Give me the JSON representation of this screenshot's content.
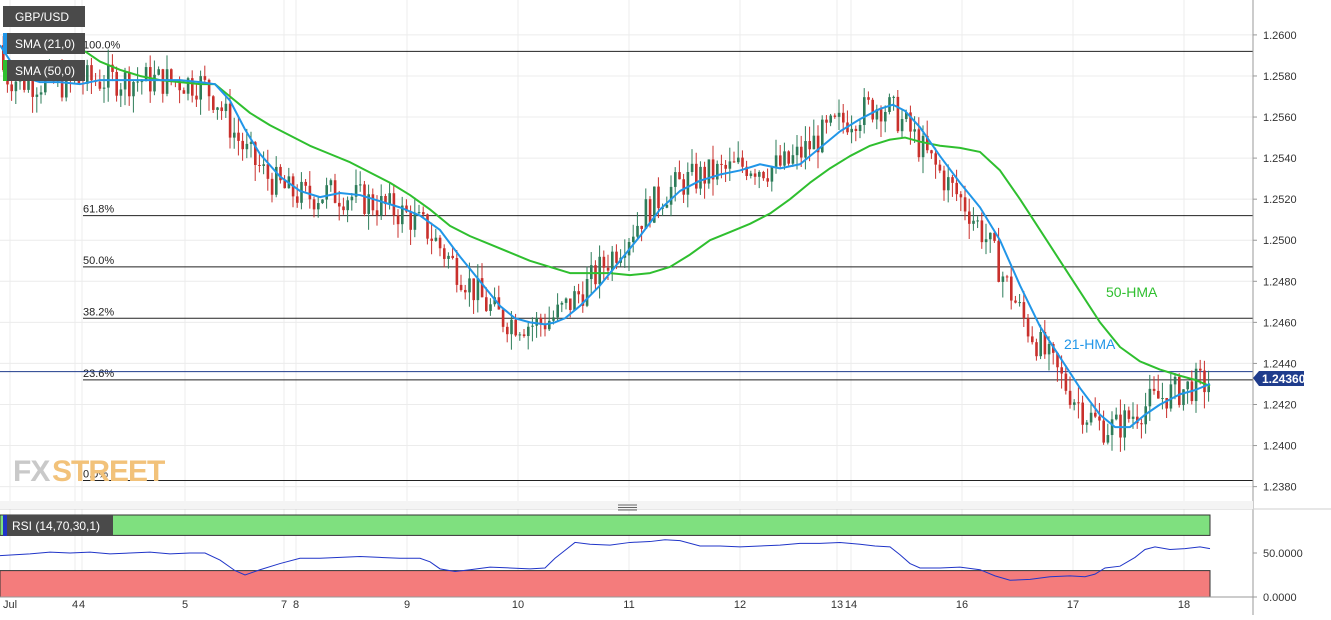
{
  "symbol": "GBP/USD",
  "legend": {
    "sma21": "SMA (21,0)",
    "sma50": "SMA (50,0)",
    "rsi": "RSI (14,70,30,1)"
  },
  "watermark": {
    "fx": "FX",
    "street": "STREET"
  },
  "colors": {
    "bull": "#2e7d5a",
    "bear": "#c9302c",
    "hma21": "#2196e8",
    "hma50": "#2fbf2f",
    "rsi_line": "#2035c8",
    "rsi_overbought": "#7fe07f",
    "rsi_oversold": "#f47c7c",
    "price_label": "#1f3c8c"
  },
  "chart_data": [
    {
      "type": "candlestick",
      "title": "GBP/USD",
      "y_ticks": [
        "1.2380",
        "1.2400",
        "1.2420",
        "1.2440",
        "1.2460",
        "1.2480",
        "1.2500",
        "1.2520",
        "1.2540",
        "1.2560",
        "1.2580",
        "1.2600"
      ],
      "ylim": [
        1.2373,
        1.2617
      ],
      "current_price": "1.24360",
      "x_ticks": [
        "Jul",
        "4",
        "4",
        "5",
        "7",
        "8",
        "9",
        "10",
        "11",
        "12",
        "13",
        "14",
        "16",
        "17",
        "18"
      ],
      "fibonacci": [
        {
          "label": "100.0%",
          "value": 1.2592
        },
        {
          "label": "61.8%",
          "value": 1.2512
        },
        {
          "label": "50.0%",
          "value": 1.2487
        },
        {
          "label": "38.2%",
          "value": 1.2462
        },
        {
          "label": "23.6%",
          "value": 1.2432
        },
        {
          "label": "0.0%",
          "value": 1.2383
        }
      ],
      "annotations": [
        "50-HMA",
        "21-HMA"
      ],
      "series": [
        {
          "name": "21-HMA",
          "points": [
            [
              0,
              1.2595
            ],
            [
              20,
              1.258
            ],
            [
              40,
              1.2577
            ],
            [
              60,
              1.2577
            ],
            [
              80,
              1.2576
            ],
            [
              100,
              1.2578
            ],
            [
              120,
              1.2578
            ],
            [
              140,
              1.2578
            ],
            [
              160,
              1.2578
            ],
            [
              180,
              1.2578
            ],
            [
              200,
              1.2577
            ],
            [
              215,
              1.2576
            ],
            [
              230,
              1.2568
            ],
            [
              245,
              1.2554
            ],
            [
              260,
              1.2542
            ],
            [
              280,
              1.2531
            ],
            [
              300,
              1.2524
            ],
            [
              320,
              1.2521
            ],
            [
              340,
              1.2523
            ],
            [
              360,
              1.2522
            ],
            [
              380,
              1.2519
            ],
            [
              400,
              1.2516
            ],
            [
              420,
              1.2512
            ],
            [
              440,
              1.2505
            ],
            [
              460,
              1.2492
            ],
            [
              480,
              1.248
            ],
            [
              500,
              1.2468
            ],
            [
              515,
              1.2462
            ],
            [
              530,
              1.246
            ],
            [
              545,
              1.2459
            ],
            [
              555,
              1.246
            ],
            [
              565,
              1.2462
            ],
            [
              580,
              1.2468
            ],
            [
              600,
              1.2478
            ],
            [
              620,
              1.249
            ],
            [
              640,
              1.2502
            ],
            [
              660,
              1.2515
            ],
            [
              680,
              1.2524
            ],
            [
              700,
              1.2529
            ],
            [
              720,
              1.2532
            ],
            [
              740,
              1.2534
            ],
            [
              760,
              1.2537
            ],
            [
              780,
              1.2535
            ],
            [
              800,
              1.2537
            ],
            [
              820,
              1.2545
            ],
            [
              840,
              1.2553
            ],
            [
              860,
              1.2559
            ],
            [
              880,
              1.2564
            ],
            [
              893,
              1.2566
            ],
            [
              905,
              1.2563
            ],
            [
              920,
              1.2555
            ],
            [
              940,
              1.2541
            ],
            [
              960,
              1.2528
            ],
            [
              980,
              1.2516
            ],
            [
              1000,
              1.25
            ],
            [
              1020,
              1.2478
            ],
            [
              1040,
              1.2458
            ],
            [
              1060,
              1.2443
            ],
            [
              1080,
              1.2428
            ],
            [
              1100,
              1.2415
            ],
            [
              1115,
              1.2409
            ],
            [
              1130,
              1.2409
            ],
            [
              1145,
              1.2415
            ],
            [
              1160,
              1.242
            ],
            [
              1180,
              1.2425
            ],
            [
              1195,
              1.2427
            ],
            [
              1210,
              1.243
            ]
          ]
        },
        {
          "name": "50-HMA",
          "points": [
            [
              85,
              1.2592
            ],
            [
              100,
              1.2587
            ],
            [
              120,
              1.2583
            ],
            [
              140,
              1.258
            ],
            [
              160,
              1.2578
            ],
            [
              180,
              1.2577
            ],
            [
              200,
              1.2576
            ],
            [
              215,
              1.2576
            ],
            [
              230,
              1.257
            ],
            [
              250,
              1.2562
            ],
            [
              270,
              1.2556
            ],
            [
              290,
              1.2551
            ],
            [
              310,
              1.2546
            ],
            [
              330,
              1.2542
            ],
            [
              350,
              1.2538
            ],
            [
              370,
              1.2533
            ],
            [
              390,
              1.2528
            ],
            [
              410,
              1.2522
            ],
            [
              430,
              1.2515
            ],
            [
              450,
              1.2507
            ],
            [
              470,
              1.2502
            ],
            [
              490,
              1.2498
            ],
            [
              510,
              1.2494
            ],
            [
              530,
              1.249
            ],
            [
              550,
              1.2487
            ],
            [
              570,
              1.2484
            ],
            [
              590,
              1.2484
            ],
            [
              610,
              1.2484
            ],
            [
              630,
              1.2483
            ],
            [
              650,
              1.2484
            ],
            [
              670,
              1.2487
            ],
            [
              690,
              1.2493
            ],
            [
              710,
              1.25
            ],
            [
              730,
              1.2504
            ],
            [
              750,
              1.2508
            ],
            [
              770,
              1.2513
            ],
            [
              790,
              1.252
            ],
            [
              810,
              1.2528
            ],
            [
              830,
              1.2535
            ],
            [
              850,
              1.2541
            ],
            [
              870,
              1.2546
            ],
            [
              890,
              1.2549
            ],
            [
              905,
              1.255
            ],
            [
              920,
              1.2548
            ],
            [
              940,
              1.2546
            ],
            [
              960,
              1.2545
            ],
            [
              980,
              1.2543
            ],
            [
              1000,
              1.2534
            ],
            [
              1020,
              1.252
            ],
            [
              1040,
              1.2505
            ],
            [
              1060,
              1.249
            ],
            [
              1080,
              1.2475
            ],
            [
              1100,
              1.246
            ],
            [
              1120,
              1.2448
            ],
            [
              1140,
              1.2441
            ],
            [
              1160,
              1.2437
            ],
            [
              1180,
              1.2434
            ],
            [
              1195,
              1.2432
            ],
            [
              1210,
              1.2429
            ]
          ]
        }
      ]
    },
    {
      "type": "line",
      "title": "RSI (14,70,30,1)",
      "y_ticks": [
        "0.0000",
        "50.0000"
      ],
      "ylim": [
        0,
        100
      ],
      "levels": [
        70,
        30
      ],
      "series": [
        {
          "name": "RSI",
          "points": [
            [
              0,
              47
            ],
            [
              15,
              48
            ],
            [
              30,
              49
            ],
            [
              50,
              51
            ],
            [
              70,
              50
            ],
            [
              90,
              51
            ],
            [
              110,
              49
            ],
            [
              130,
              50
            ],
            [
              150,
              51
            ],
            [
              170,
              49
            ],
            [
              190,
              50
            ],
            [
              205,
              50
            ],
            [
              220,
              42
            ],
            [
              235,
              30
            ],
            [
              245,
              25
            ],
            [
              260,
              31
            ],
            [
              280,
              38
            ],
            [
              300,
              44
            ],
            [
              320,
              44
            ],
            [
              340,
              45
            ],
            [
              360,
              46
            ],
            [
              380,
              45
            ],
            [
              400,
              44
            ],
            [
              420,
              44
            ],
            [
              430,
              40
            ],
            [
              440,
              32
            ],
            [
              455,
              29
            ],
            [
              470,
              31
            ],
            [
              490,
              34
            ],
            [
              510,
              33
            ],
            [
              530,
              32
            ],
            [
              545,
              33
            ],
            [
              555,
              44
            ],
            [
              565,
              53
            ],
            [
              575,
              62
            ],
            [
              590,
              60
            ],
            [
              610,
              59
            ],
            [
              630,
              62
            ],
            [
              650,
              63
            ],
            [
              665,
              65
            ],
            [
              680,
              64
            ],
            [
              700,
              58
            ],
            [
              720,
              58
            ],
            [
              740,
              57
            ],
            [
              760,
              58
            ],
            [
              780,
              59
            ],
            [
              800,
              61
            ],
            [
              820,
              61
            ],
            [
              840,
              62
            ],
            [
              860,
              60
            ],
            [
              875,
              58
            ],
            [
              890,
              57
            ],
            [
              900,
              48
            ],
            [
              910,
              38
            ],
            [
              920,
              33
            ],
            [
              940,
              33
            ],
            [
              960,
              34
            ],
            [
              980,
              31
            ],
            [
              995,
              24
            ],
            [
              1010,
              19
            ],
            [
              1030,
              20
            ],
            [
              1050,
              23
            ],
            [
              1070,
              24
            ],
            [
              1085,
              23
            ],
            [
              1095,
              26
            ],
            [
              1105,
              33
            ],
            [
              1120,
              35
            ],
            [
              1135,
              45
            ],
            [
              1145,
              54
            ],
            [
              1155,
              57
            ],
            [
              1170,
              54
            ],
            [
              1185,
              55
            ],
            [
              1200,
              57
            ],
            [
              1210,
              55
            ]
          ]
        }
      ]
    }
  ]
}
